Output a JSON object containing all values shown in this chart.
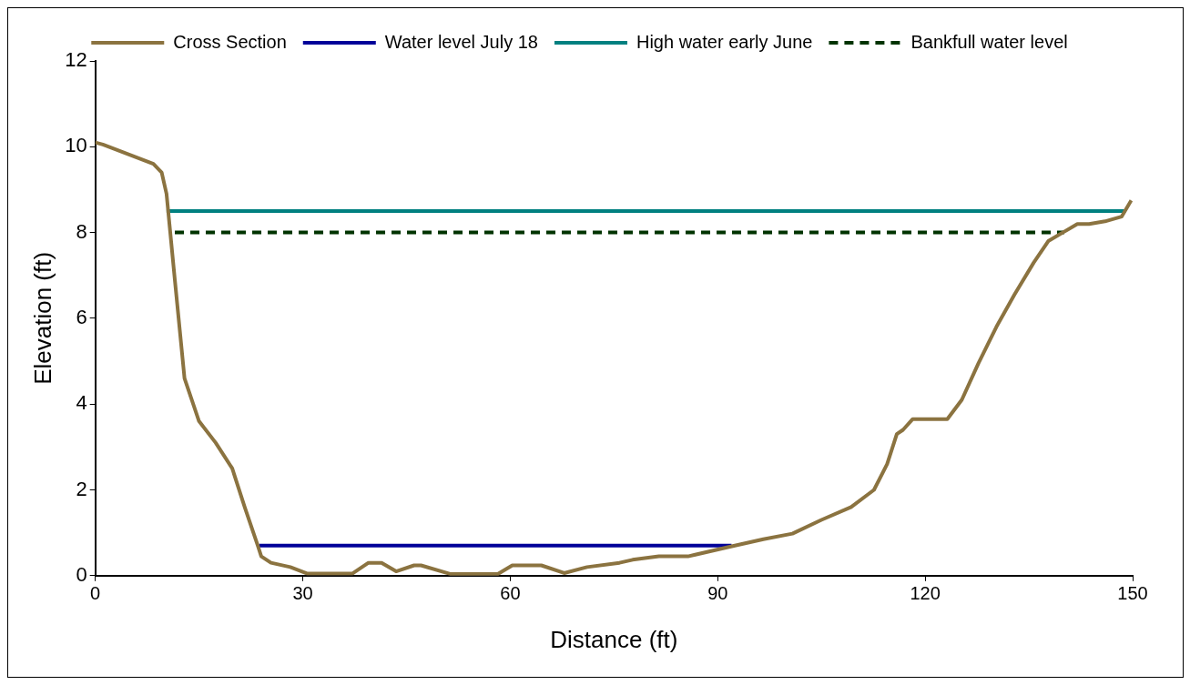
{
  "chart_data": {
    "type": "line",
    "xlabel": "Distance (ft)",
    "ylabel": "Elevation (ft)",
    "xlim": [
      0,
      150
    ],
    "xticks": [
      0,
      30,
      60,
      90,
      120,
      150
    ],
    "ylim": [
      0,
      12
    ],
    "yticks": [
      0,
      2,
      4,
      6,
      8,
      10,
      12
    ],
    "grid": false,
    "legend": "top",
    "marker": "none",
    "line_style": "solid",
    "series": [
      {
        "name": "Cross Section",
        "color": "#8b7340",
        "x": [
          0,
          1.1,
          8.4,
          9.6,
          10.3,
          11.5,
          12.9,
          15.0,
          17.4,
          19.8,
          21.6,
          23.5,
          24.0,
          25.4,
          28.2,
          30.6,
          37.2,
          39.5,
          41.4,
          43.5,
          46.1,
          47.1,
          51.3,
          58.2,
          60.3,
          64.5,
          67.8,
          71.1,
          75.8,
          77.7,
          81.5,
          85.7,
          91.9,
          96.6,
          100.8,
          105,
          109.3,
          112.6,
          114.5,
          115.9,
          116.8,
          118.2,
          123.2,
          125.3,
          127.7,
          130.3,
          132.9,
          135.7,
          137.8,
          139.9,
          142.0,
          143.7,
          146.0,
          148.4,
          149.8
        ],
        "values": [
          10.1,
          10.05,
          9.6,
          9.4,
          8.9,
          6.9,
          4.6,
          3.6,
          3.1,
          2.5,
          1.6,
          0.7,
          0.45,
          0.3,
          0.2,
          0.05,
          0.05,
          0.3,
          0.3,
          0.1,
          0.24,
          0.24,
          0.04,
          0.04,
          0.24,
          0.24,
          0.06,
          0.2,
          0.3,
          0.37,
          0.45,
          0.45,
          0.68,
          0.85,
          0.98,
          1.3,
          1.6,
          2.0,
          2.6,
          3.3,
          3.4,
          3.65,
          3.65,
          4.1,
          4.95,
          5.8,
          6.55,
          7.3,
          7.8,
          8.0,
          8.2,
          8.2,
          8.26,
          8.37,
          8.75
        ]
      },
      {
        "name": "Water level July 18",
        "color": "#000099",
        "x": [
          23.7,
          92
        ],
        "values": [
          0.7,
          0.7
        ]
      },
      {
        "name": "High water early June",
        "color": "#008080",
        "x": [
          10.3,
          149
        ],
        "values": [
          8.5,
          8.5
        ]
      },
      {
        "name": "Bankfull water level",
        "color": "#003300",
        "line_style": "dashed",
        "x": [
          11.5,
          140.1
        ],
        "values": [
          8.0,
          8.0
        ]
      }
    ]
  }
}
